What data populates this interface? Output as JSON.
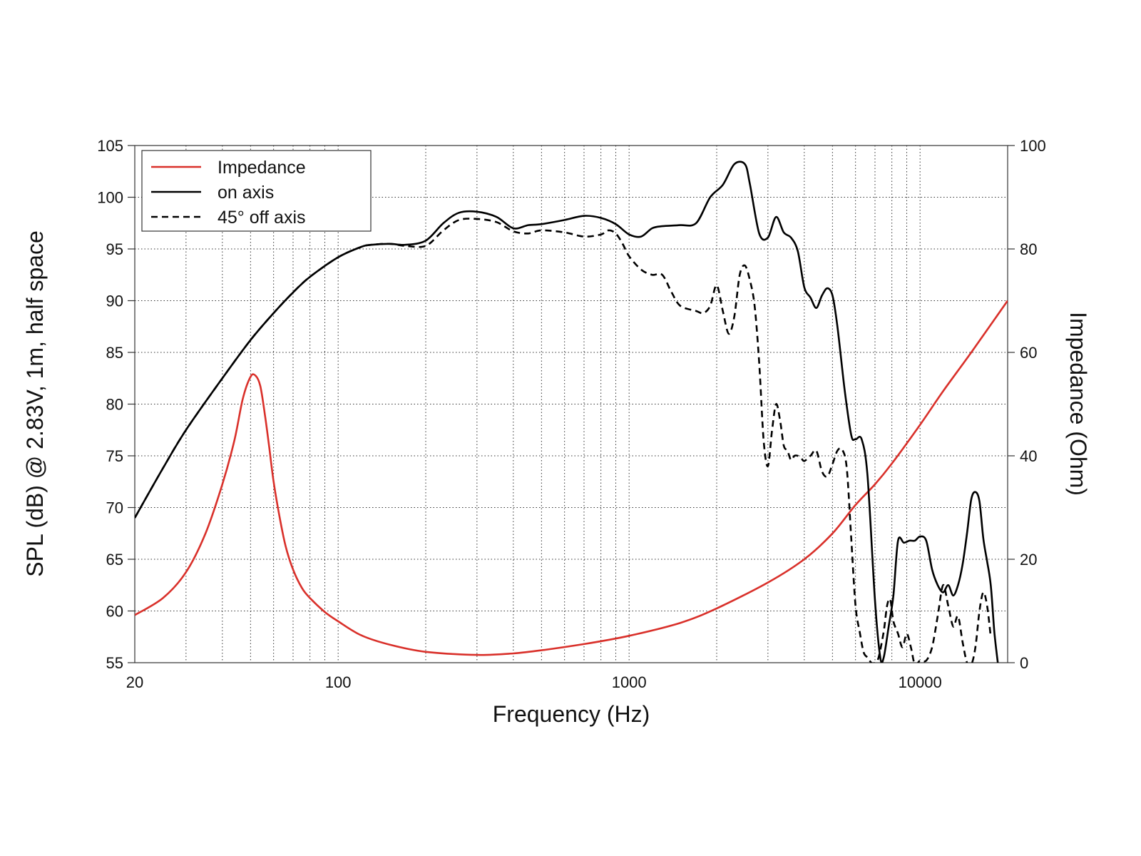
{
  "chart_data": {
    "type": "line",
    "xlabel": "Frequency (Hz)",
    "ylabel": "SPL (dB) @ 2.83V, 1m, half space",
    "y2label": "Impedance (Ohm)",
    "xscale": "log",
    "xlim": [
      20,
      20000
    ],
    "ylim": [
      55,
      105
    ],
    "y2lim": [
      0,
      100
    ],
    "x_ticks": [
      20,
      100,
      1000,
      10000
    ],
    "x_tick_labels": [
      "20",
      "100",
      "1000",
      "10000"
    ],
    "y_ticks": [
      55,
      60,
      65,
      70,
      75,
      80,
      85,
      90,
      95,
      100,
      105
    ],
    "y_tick_labels": [
      "55",
      "60",
      "65",
      "70",
      "75",
      "80",
      "85",
      "90",
      "95",
      "100",
      "105"
    ],
    "y2_ticks": [
      0,
      20,
      40,
      60,
      80,
      100
    ],
    "y2_tick_labels": [
      "0",
      "20",
      "40",
      "60",
      "80",
      "100"
    ],
    "grid": true,
    "legend_position": "top-left",
    "colors": {
      "impedance": "#d9302a",
      "on_axis": "#000000",
      "off_axis": "#000000",
      "grid": "#333333"
    },
    "series": [
      {
        "name": "Impedance",
        "axis": "right",
        "style": "solid",
        "color": "#d9302a",
        "x": [
          20,
          25,
          30,
          35,
          40,
          44,
          47,
          50,
          52,
          54,
          56,
          58,
          60,
          63,
          66,
          70,
          75,
          80,
          90,
          100,
          120,
          150,
          200,
          300,
          400,
          500,
          700,
          1000,
          1500,
          2000,
          3000,
          4000,
          5000,
          6000,
          7000,
          8000,
          10000,
          12000,
          15000,
          20000
        ],
        "values": [
          9.2,
          12.5,
          17.5,
          25,
          34.5,
          43,
          51,
          55.3,
          55.5,
          53.5,
          48,
          41.5,
          35,
          28,
          22.5,
          18,
          14.5,
          12.5,
          9.8,
          8,
          5.3,
          3.5,
          2.1,
          1.5,
          1.8,
          2.4,
          3.6,
          5.2,
          7.7,
          10.5,
          15.5,
          20,
          25,
          30.5,
          34.5,
          38.5,
          46,
          52.5,
          60,
          70
        ]
      },
      {
        "name": "on axis",
        "axis": "left",
        "style": "solid",
        "color": "#000000",
        "x": [
          20,
          25,
          30,
          40,
          50,
          60,
          70,
          80,
          100,
          120,
          130,
          150,
          170,
          200,
          230,
          260,
          300,
          350,
          400,
          450,
          500,
          600,
          700,
          800,
          900,
          1000,
          1100,
          1200,
          1300,
          1500,
          1700,
          1900,
          2100,
          2300,
          2500,
          2600,
          2800,
          3000,
          3200,
          3400,
          3600,
          3800,
          4000,
          4200,
          4400,
          4600,
          4800,
          5000,
          5200,
          5500,
          5800,
          6000,
          6300,
          6600,
          7000,
          7300,
          7500,
          7800,
          8100,
          8400,
          8800,
          9200,
          9600,
          10000,
          10500,
          11000,
          11500,
          12000,
          12500,
          13000,
          13500,
          14000,
          14500,
          15000,
          15500,
          16000,
          16500,
          17000,
          17500,
          18000,
          18500
        ],
        "values": [
          69,
          73.8,
          77.5,
          82.5,
          86.2,
          88.8,
          90.8,
          92.3,
          94.2,
          95.2,
          95.4,
          95.5,
          95.4,
          95.8,
          97.5,
          98.5,
          98.6,
          98.1,
          97,
          97.3,
          97.4,
          97.8,
          98.2,
          98,
          97.4,
          96.4,
          96.2,
          97,
          97.2,
          97.3,
          97.5,
          100,
          101.2,
          103.2,
          103.2,
          101.3,
          96.5,
          96.1,
          98.1,
          96.6,
          96.1,
          94.8,
          91.3,
          90.3,
          89.3,
          90.5,
          91.2,
          90.5,
          87.5,
          81.5,
          77,
          76.6,
          76.6,
          73,
          61,
          55.5,
          55.5,
          58.5,
          61.5,
          66.8,
          66.6,
          66.8,
          66.8,
          67.2,
          66.8,
          64,
          62.5,
          61.8,
          62.5,
          61.5,
          62.5,
          64.5,
          67.5,
          70.8,
          71.5,
          70.6,
          67,
          64.8,
          62.5,
          58,
          55
        ]
      },
      {
        "name": "45° off axis",
        "axis": "left",
        "style": "dashed",
        "color": "#000000",
        "x": [
          20,
          25,
          30,
          40,
          50,
          60,
          70,
          80,
          100,
          120,
          130,
          150,
          170,
          200,
          230,
          260,
          300,
          350,
          400,
          450,
          500,
          600,
          700,
          800,
          850,
          900,
          950,
          1000,
          1100,
          1200,
          1300,
          1400,
          1500,
          1700,
          1800,
          1900,
          2000,
          2100,
          2200,
          2300,
          2400,
          2500,
          2600,
          2700,
          2800,
          2900,
          3000,
          3100,
          3200,
          3300,
          3400,
          3500,
          3600,
          3700,
          3800,
          3900,
          4000,
          4200,
          4400,
          4600,
          4800,
          5000,
          5200,
          5400,
          5600,
          5800,
          6000,
          6200,
          6400,
          6600,
          6800,
          7000,
          7200,
          7500,
          7700,
          7900,
          8100,
          8400,
          8700,
          9000,
          9300,
          9600,
          10000,
          10500,
          11000,
          11500,
          12000,
          12500,
          13000,
          13500,
          14000,
          14500,
          15000,
          15500,
          16000,
          16500,
          17000,
          17500
        ],
        "values": [
          69,
          73.8,
          77.5,
          82.5,
          86.2,
          88.8,
          90.8,
          92.3,
          94.2,
          95.2,
          95.4,
          95.5,
          95.3,
          95.3,
          96.8,
          97.8,
          97.9,
          97.6,
          96.7,
          96.5,
          96.8,
          96.6,
          96.2,
          96.4,
          96.8,
          96.5,
          95.5,
          94.3,
          93,
          92.5,
          92.5,
          90.8,
          89.5,
          89,
          88.8,
          89.5,
          91.5,
          89,
          86.8,
          88.5,
          92.5,
          93.4,
          92,
          89.5,
          84,
          76.5,
          74,
          77.5,
          80,
          78.5,
          76,
          75.5,
          74.6,
          75,
          75,
          74.8,
          74.5,
          75,
          75.5,
          73.5,
          73,
          74.2,
          75.5,
          75.6,
          73.8,
          67,
          60.5,
          58,
          56,
          55.5,
          55,
          55,
          55.5,
          58,
          60.5,
          61.1,
          59,
          57.8,
          56.5,
          57.8,
          56.5,
          54.8,
          55.2,
          55.2,
          56.5,
          59.5,
          62.5,
          60.5,
          58.5,
          59.5,
          57,
          55,
          54.8,
          56.5,
          60,
          61.8,
          60.5,
          57.5
        ]
      }
    ]
  }
}
